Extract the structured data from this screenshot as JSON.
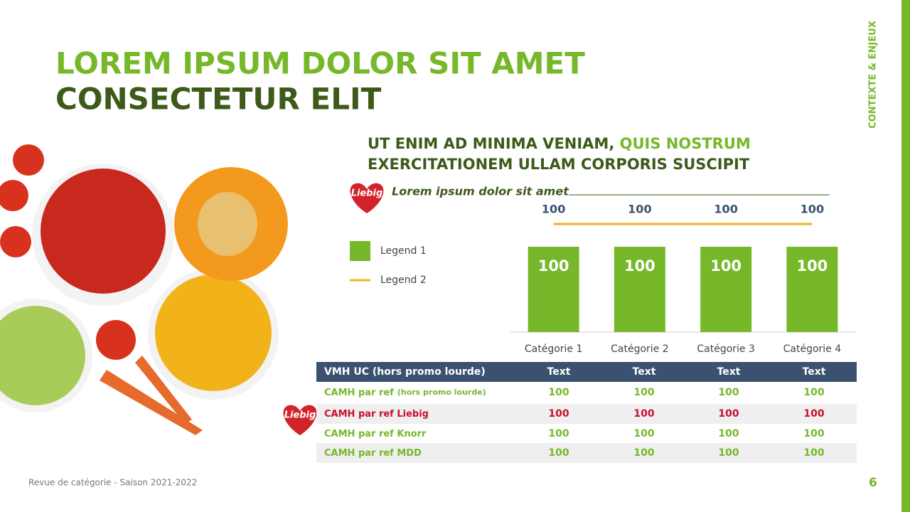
{
  "header": {
    "title_line1": "LOREM IPSUM DOLOR SIT AMET",
    "title_line2": "CONSECTETUR ELIT",
    "side_label": "CONTEXTE & ENJEUX"
  },
  "subtitle": {
    "part1": "UT ENIM AD MINIMA VENIAM,",
    "part2": "QUIS NOSTRUM",
    "line2": "EXERCITATIONEM ULLAM CORPORIS SUSCIPIT"
  },
  "logo_text": "Liebig",
  "chart_heading": "Lorem ipsum dolor sit amet",
  "chart_data": {
    "type": "bar",
    "categories": [
      "Catégorie 1",
      "Catégorie 2",
      "Catégorie 3",
      "Catégorie 4"
    ],
    "series": [
      {
        "name": "Legend 1",
        "type": "bar",
        "color": "#76b82a",
        "values": [
          100,
          100,
          100,
          100
        ]
      },
      {
        "name": "Legend 2",
        "type": "line",
        "color": "#f4b223",
        "values": [
          100,
          100,
          100,
          100
        ]
      }
    ]
  },
  "table": {
    "header": [
      "VMH UC (hors promo lourde)",
      "Text",
      "Text",
      "Text",
      "Text"
    ],
    "rows": [
      {
        "label": "CAMH par ref",
        "note": "(hors promo lourde)",
        "cells": [
          100,
          100,
          100,
          100
        ]
      },
      {
        "label": "CAMH par ref Liebig",
        "cells": [
          100,
          100,
          100,
          100
        ]
      },
      {
        "label": "CAMH par ref Knorr",
        "cells": [
          100,
          100,
          100,
          100
        ]
      },
      {
        "label": "CAMH par ref MDD",
        "cells": [
          100,
          100,
          100,
          100
        ]
      }
    ],
    "row_logo": "Liebig"
  },
  "footer": {
    "text": "Revue de catégorie - Saison 2021-2022",
    "page": "6"
  }
}
